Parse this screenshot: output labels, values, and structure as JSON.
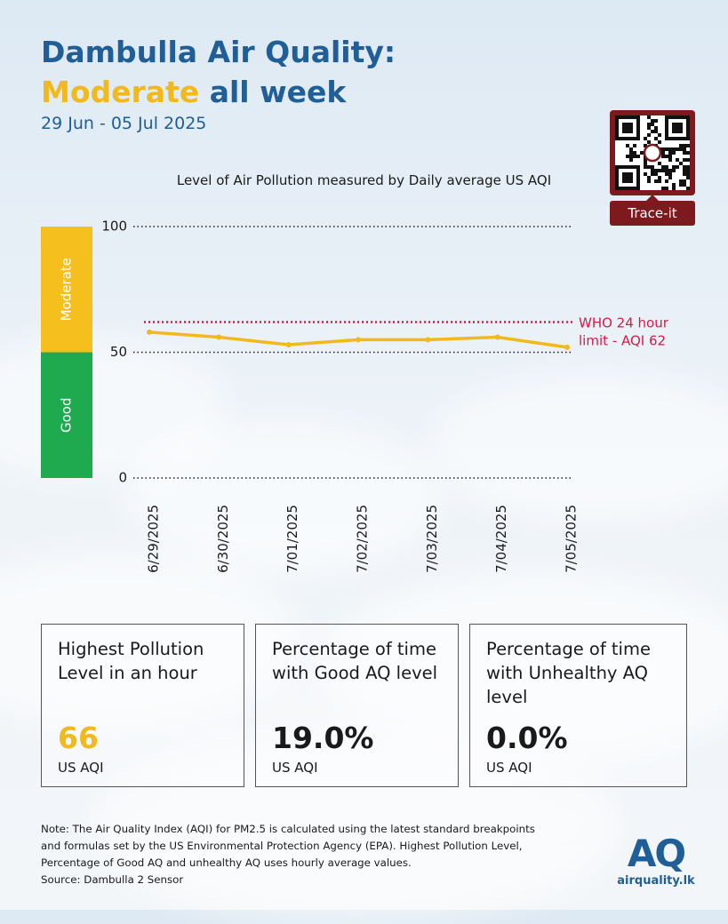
{
  "header": {
    "title_line1": "Dambulla Air Quality:",
    "title_highlight": "Moderate",
    "title_rest": " all week",
    "date_range": "29 Jun - 05 Jul 2025"
  },
  "qr": {
    "label": "Trace-it"
  },
  "chart_data": {
    "type": "line",
    "title": "Level of Air Pollution measured by Daily average US AQI",
    "categories": [
      "6/29/2025",
      "6/30/2025",
      "7/01/2025",
      "7/02/2025",
      "7/03/2025",
      "7/04/2025",
      "7/05/2025"
    ],
    "series": [
      {
        "values": [
          58,
          56,
          53,
          55,
          55,
          56,
          52
        ],
        "color": "#f2b91d"
      }
    ],
    "ylim": [
      0,
      100
    ],
    "yticks": [
      "0",
      "50",
      "100"
    ],
    "bands": [
      {
        "label": "Good",
        "from": 0,
        "to": 50,
        "color": "#1faa4f"
      },
      {
        "label": "Moderate",
        "from": 50,
        "to": 100,
        "color": "#f5bf1d"
      }
    ],
    "reference_line": {
      "value": 62,
      "label_line1": "WHO 24 hour",
      "label_line2": "limit - AQI 62",
      "color": "#d81b46"
    }
  },
  "stats": [
    {
      "label": "Highest Pollution Level in an hour",
      "value": "66",
      "unit": "US AQI",
      "color": "#f2b91d"
    },
    {
      "label": "Percentage of time with Good AQ level",
      "value": "19.0%",
      "unit": "US AQI",
      "color": "#1a1a1a"
    },
    {
      "label": "Percentage of time with Unhealthy AQ level",
      "value": "0.0%",
      "unit": "US AQI",
      "color": "#1a1a1a"
    }
  ],
  "note": {
    "line1": "Note: The Air Quality Index (AQI) for PM2.5 is calculated using the latest standard breakpoints",
    "line2": "and formulas set by the US Environmental Protection Agency (EPA). Highest Pollution Level,",
    "line3": "Percentage of Good AQ and unhealthy AQ uses hourly average values.",
    "source": "Source: Dambulla 2 Sensor"
  },
  "logo": {
    "mark": "AQ",
    "text": "airquality.lk"
  }
}
